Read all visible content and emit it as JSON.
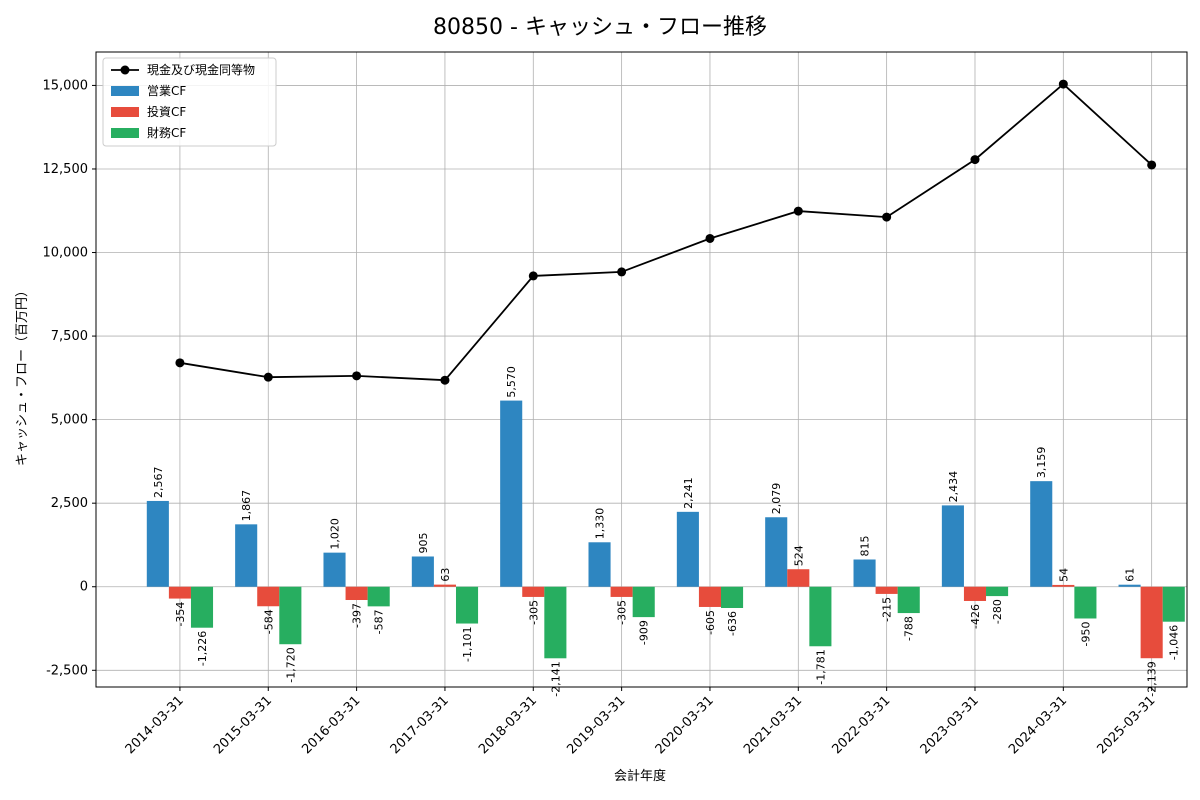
{
  "chart_data": {
    "type": "bar",
    "title": "80850 - キャッシュ・フロー推移",
    "xlabel": "会計年度",
    "ylabel": "キャッシュ・フロー（百万円）",
    "ylim": [
      -3000,
      16000
    ],
    "yticks": [
      -2500,
      0,
      2500,
      5000,
      7500,
      10000,
      12500,
      15000
    ],
    "ytick_labels": [
      "-2,500",
      "0",
      "2,500",
      "5,000",
      "7,500",
      "10,000",
      "12,500",
      "15,000"
    ],
    "grid": true,
    "legend_position": "top-left",
    "categories": [
      "2014-03-31",
      "2015-03-31",
      "2016-03-31",
      "2017-03-31",
      "2018-03-31",
      "2019-03-31",
      "2020-03-31",
      "2021-03-31",
      "2022-03-31",
      "2023-03-31",
      "2024-03-31",
      "2025-03-31"
    ],
    "line": {
      "name": "現金及び現金同等物",
      "color": "#000000",
      "values": [
        6700,
        6270,
        6310,
        6180,
        9300,
        9420,
        10420,
        11240,
        11060,
        12780,
        15040,
        12620
      ]
    },
    "series": [
      {
        "name": "営業CF",
        "color": "#2e86c1",
        "values": [
          2567,
          1867,
          1020,
          905,
          5570,
          1330,
          2241,
          2079,
          815,
          2434,
          3159,
          61
        ],
        "labels": [
          "2,567",
          "1,867",
          "1,020",
          "905",
          "5,570",
          "1,330",
          "2,241",
          "2,079",
          "815",
          "2,434",
          "3,159",
          "61"
        ]
      },
      {
        "name": "投資CF",
        "color": "#e74c3c",
        "values": [
          -354,
          -584,
          -397,
          63,
          -305,
          -305,
          -605,
          524,
          -215,
          -426,
          54,
          -2139
        ],
        "labels": [
          "-354",
          "-584",
          "-397",
          "63",
          "-305",
          "-305",
          "-605",
          "524",
          "-215",
          "-426",
          "54",
          "-2,139"
        ]
      },
      {
        "name": "財務CF",
        "color": "#27ae60",
        "values": [
          -1226,
          -1720,
          -587,
          -1101,
          -2141,
          -909,
          -636,
          -1781,
          -788,
          -280,
          -950,
          -1046
        ],
        "labels": [
          "-1,226",
          "-1,720",
          "-587",
          "-1,101",
          "-2,141",
          "-909",
          "-636",
          "-1,781",
          "-788",
          "-280",
          "-950",
          "-1,046"
        ]
      }
    ]
  }
}
